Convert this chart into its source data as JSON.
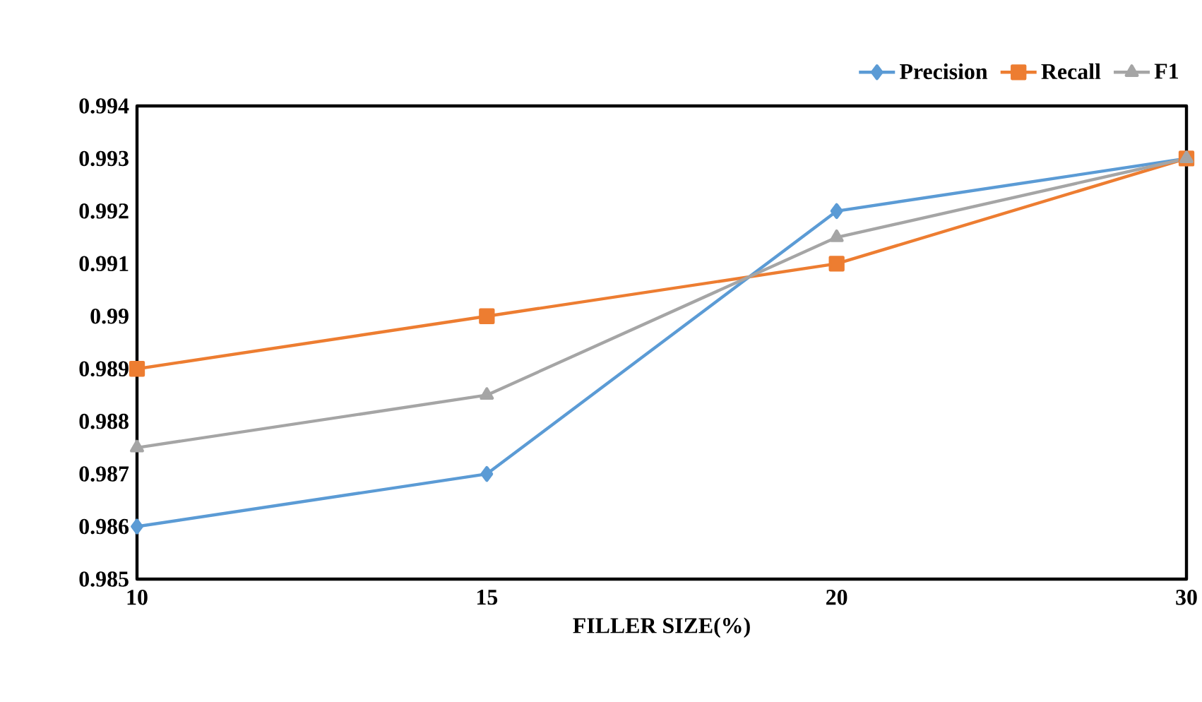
{
  "chart_data": {
    "type": "line",
    "xlabel": "FILLER SIZE(%)",
    "categories": [
      "10",
      "15",
      "20",
      "30"
    ],
    "series": [
      {
        "name": "Precision",
        "color": "#5b9bd5",
        "marker": "diamond",
        "values": [
          0.986,
          0.987,
          0.992,
          0.993
        ]
      },
      {
        "name": "Recall",
        "color": "#ed7d31",
        "marker": "square",
        "values": [
          0.989,
          0.99,
          0.991,
          0.993
        ]
      },
      {
        "name": "F1",
        "color": "#a5a5a5",
        "marker": "triangle",
        "values": [
          0.9875,
          0.9885,
          0.9915,
          0.993
        ]
      }
    ],
    "ylim": [
      0.985,
      0.994
    ],
    "yticks": [
      0.985,
      0.986,
      0.987,
      0.988,
      0.989,
      0.99,
      0.991,
      0.992,
      0.993,
      0.994
    ],
    "grid": false,
    "legend": "top right",
    "line_style": "solid"
  }
}
